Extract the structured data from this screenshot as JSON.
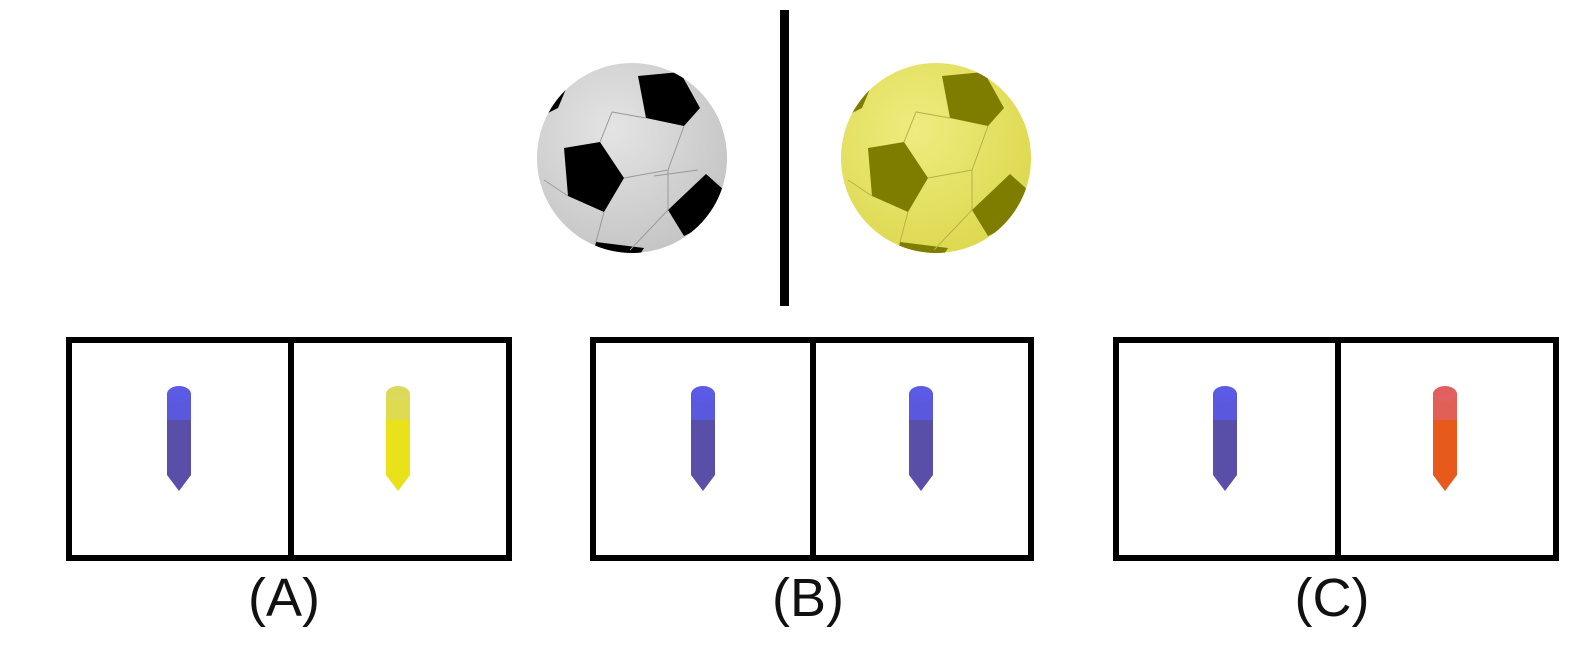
{
  "top": {
    "left_ball": {
      "icon": "soccer-ball-icon",
      "color": "#d6d6d6",
      "patch_color": "#000000"
    },
    "right_ball": {
      "icon": "soccer-ball-icon",
      "color": "#e8e56a",
      "patch_color": "#7f7d00"
    }
  },
  "options": [
    {
      "label": "(A)",
      "left_crayon": {
        "icon": "crayon-icon",
        "color": "#5a4fa8",
        "cap": "#5b5be6"
      },
      "right_crayon": {
        "icon": "crayon-icon",
        "color": "#e9e21a",
        "cap": "#dcd95a"
      }
    },
    {
      "label": "(B)",
      "left_crayon": {
        "icon": "crayon-icon",
        "color": "#5a4fa8",
        "cap": "#5b5be6"
      },
      "right_crayon": {
        "icon": "crayon-icon",
        "color": "#5a4fa8",
        "cap": "#5b5be6"
      }
    },
    {
      "label": "(C)",
      "left_crayon": {
        "icon": "crayon-icon",
        "color": "#5a4fa8",
        "cap": "#5b5be6"
      },
      "right_crayon": {
        "icon": "crayon-icon",
        "color": "#e85a1c",
        "cap": "#e06060"
      }
    }
  ]
}
